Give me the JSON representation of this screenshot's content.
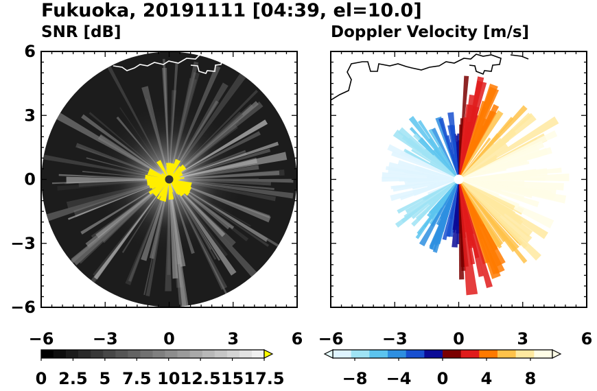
{
  "figure": {
    "title": "Fukuoka, 20191111 [04:39, el=10.0]"
  },
  "colors": {
    "snr_disk": "#1c1c1c",
    "coastline": "#000000",
    "coastline_on_dark": "#ffffff",
    "noise_echo": "#ffee00",
    "velocity_cmap": [
      "#dff4ff",
      "#9fe3f4",
      "#5cc4ee",
      "#2e8fe0",
      "#1850d0",
      "#0b0b96",
      "#7a0000",
      "#e01b1b",
      "#ff7a00",
      "#ffc24a",
      "#ffe9a0",
      "#fffde6"
    ],
    "snr_cmap": [
      "#000000",
      "#1a1a1a",
      "#333333",
      "#4d4d4d",
      "#666666",
      "#808080",
      "#999999",
      "#b3b3b3",
      "#cccccc",
      "#e6e6e6",
      "#ffffff"
    ],
    "extend_arrow_snr": "#ffff00",
    "extend_arrow_vel": "#e8ffff"
  },
  "chart_data": [
    {
      "type": "heatmap",
      "title": "SNR [dB]",
      "xlim": [
        -6,
        6
      ],
      "ylim": [
        -6,
        6
      ],
      "xticks": [
        "−6",
        "−3",
        "0",
        "3",
        "6"
      ],
      "yticks": [
        "6",
        "3",
        "0",
        "−3",
        "−6"
      ],
      "range_radius_km": 6,
      "colorbar": {
        "min": 0,
        "max": 17.5,
        "extend": "max",
        "tick_labels": [
          "0",
          "2.5",
          "5",
          "7.5",
          "10",
          "12.5",
          "15",
          "17.5"
        ]
      }
    },
    {
      "type": "heatmap",
      "title": "Doppler Velocity [m/s]",
      "xlim": [
        -6,
        6
      ],
      "ylim": [
        -6,
        6
      ],
      "xticks": [
        "−6",
        "−3",
        "0",
        "3",
        "6"
      ],
      "yticks": [],
      "colorbar": {
        "min": -10,
        "max": 10,
        "extend": "both",
        "tick_labels": [
          "−8",
          "−4",
          "0",
          "4",
          "8"
        ]
      }
    }
  ]
}
